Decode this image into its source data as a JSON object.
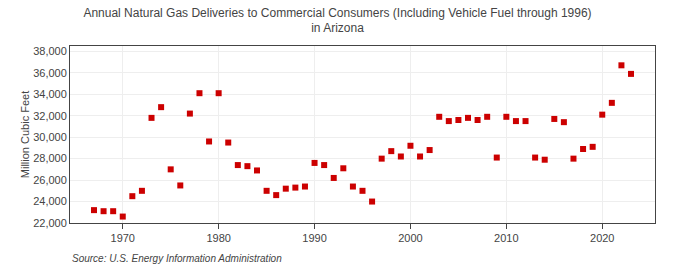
{
  "chart_data": {
    "type": "scatter",
    "title": "Annual Natural Gas Deliveries to Commercial Consumers (Including Vehicle Fuel through 1996)\nin Arizona",
    "ylabel": "Million Cubic Feet",
    "source": "Source: U.S. Energy Information Administration",
    "x": [
      1967,
      1968,
      1969,
      1970,
      1971,
      1972,
      1973,
      1974,
      1975,
      1976,
      1977,
      1978,
      1979,
      1980,
      1981,
      1982,
      1983,
      1984,
      1985,
      1986,
      1987,
      1988,
      1989,
      1990,
      1991,
      1992,
      1993,
      1994,
      1995,
      1996,
      1997,
      1998,
      1999,
      2000,
      2001,
      2002,
      2003,
      2004,
      2005,
      2006,
      2007,
      2008,
      2009,
      2010,
      2011,
      2012,
      2013,
      2014,
      2015,
      2016,
      2017,
      2018,
      2019,
      2020,
      2021,
      2022,
      2023
    ],
    "values": [
      23200,
      23100,
      23100,
      22600,
      24500,
      25000,
      31800,
      32800,
      27000,
      25500,
      32200,
      34100,
      29600,
      34100,
      29500,
      27400,
      27300,
      26900,
      25000,
      24600,
      25200,
      25300,
      25400,
      27600,
      27400,
      26200,
      27100,
      25400,
      25000,
      24000,
      28000,
      28700,
      28200,
      29200,
      28200,
      28800,
      31900,
      31500,
      31600,
      31800,
      31600,
      31900,
      28100,
      31900,
      31500,
      31500,
      28100,
      27900,
      31700,
      31400,
      28000,
      28900,
      29100,
      32100,
      33200,
      36700,
      35900
    ],
    "color": "#cc0000",
    "marker": "square",
    "xlim": [
      1964.5,
      2025.5
    ],
    "xticks": [
      1970,
      1980,
      1990,
      2000,
      2010,
      2020
    ],
    "ylim": [
      22000,
      38500
    ],
    "yticks": [
      {
        "value": 22000,
        "label": "22,000"
      },
      {
        "value": 24000,
        "label": "24,000"
      },
      {
        "value": 26000,
        "label": "26,000"
      },
      {
        "value": 28000,
        "label": "28,000"
      },
      {
        "value": 30000,
        "label": "30,000"
      },
      {
        "value": 32000,
        "label": "32,000"
      },
      {
        "value": 34000,
        "label": "34,000"
      },
      {
        "value": 36000,
        "label": "36,000"
      },
      {
        "value": 38000,
        "label": "38,000"
      }
    ],
    "grid": true
  }
}
